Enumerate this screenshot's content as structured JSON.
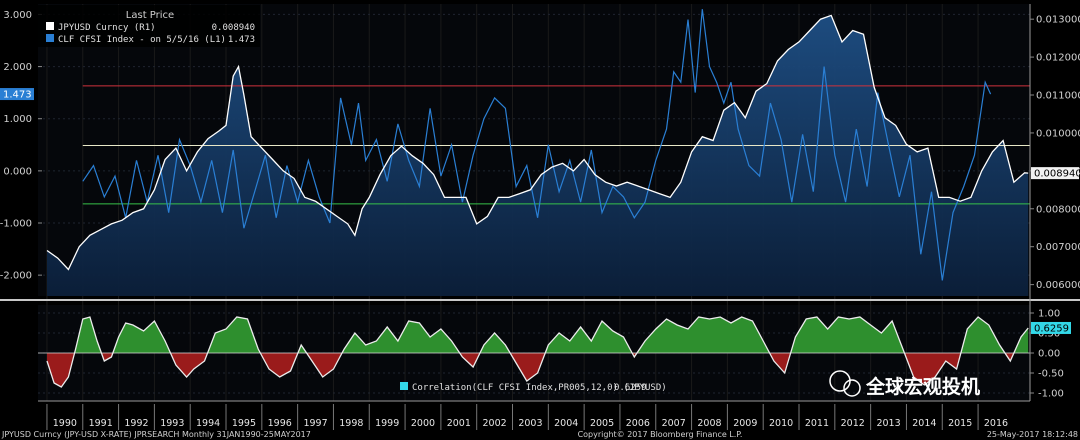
{
  "chart_data": [
    {
      "type": "area",
      "title": "Last Price",
      "legend": [
        {
          "name": "JPYUSD Curncy  (R1)",
          "value": "0.008940",
          "color": "#ffffff"
        },
        {
          "name": "CLF CFSI Index - on 5/5/16  (L1)",
          "value": "1.473",
          "color": "#2a7fd4"
        }
      ],
      "x_years": [
        "1990",
        "1991",
        "1992",
        "1993",
        "1994",
        "1995",
        "1996",
        "1997",
        "1998",
        "1999",
        "2000",
        "2001",
        "2002",
        "2003",
        "2004",
        "2005",
        "2006",
        "2007",
        "2008",
        "2009",
        "2010",
        "2011",
        "2012",
        "2013",
        "2014",
        "2015",
        "2016"
      ],
      "left_axis": {
        "ticks": [
          "3.000",
          "2.000",
          "1.000",
          "0.000",
          "-1.000",
          "-2.000"
        ],
        "ylim": [
          -2.4,
          3.2
        ],
        "last_label": "1.473"
      },
      "right_axis": {
        "ticks": [
          "0.013000",
          "0.012000",
          "0.011000",
          "0.010000",
          "0.009000",
          "0.008000",
          "0.007000",
          "0.006000"
        ],
        "ylim": [
          0.0057,
          0.0134
        ],
        "last_label": "0.008940"
      },
      "reference_lines": [
        {
          "value": 0.01124,
          "color": "#d0323c"
        },
        {
          "value": 0.00967,
          "color": "#e8e8c8"
        },
        {
          "value": 0.00813,
          "color": "#37c24a"
        }
      ],
      "series": [
        {
          "name": "JPYUSD Curncy",
          "axis": "right",
          "color": "#ffffff",
          "t": [
            1990.0,
            1990.3,
            1990.6,
            1990.9,
            1991.2,
            1991.5,
            1991.8,
            1992.1,
            1992.4,
            1992.7,
            1993.0,
            1993.3,
            1993.6,
            1993.9,
            1994.2,
            1994.5,
            1994.8,
            1995.0,
            1995.2,
            1995.35,
            1995.5,
            1995.7,
            1996.0,
            1996.3,
            1996.6,
            1996.9,
            1997.2,
            1997.5,
            1997.8,
            1998.1,
            1998.4,
            1998.6,
            1998.8,
            1999.0,
            1999.3,
            1999.6,
            1999.9,
            2000.2,
            2000.5,
            2000.8,
            2001.1,
            2001.4,
            2001.7,
            2002.0,
            2002.3,
            2002.6,
            2002.9,
            2003.2,
            2003.5,
            2003.8,
            2004.1,
            2004.4,
            2004.7,
            2005.0,
            2005.3,
            2005.6,
            2005.9,
            2006.2,
            2006.5,
            2006.8,
            2007.1,
            2007.4,
            2007.7,
            2008.0,
            2008.3,
            2008.6,
            2008.9,
            2009.2,
            2009.5,
            2009.8,
            2010.1,
            2010.4,
            2010.7,
            2011.0,
            2011.3,
            2011.6,
            2011.9,
            2012.2,
            2012.5,
            2012.8,
            2013.1,
            2013.4,
            2013.7,
            2014.0,
            2014.3,
            2014.6,
            2014.9,
            2015.2,
            2015.5,
            2015.8,
            2016.1,
            2016.4,
            2016.7,
            2017.0,
            2017.3,
            2017.4
          ],
          "values": [
            0.0069,
            0.0067,
            0.0064,
            0.007,
            0.0073,
            0.00745,
            0.0076,
            0.0077,
            0.0079,
            0.008,
            0.0085,
            0.0093,
            0.0096,
            0.009,
            0.0095,
            0.00985,
            0.01005,
            0.0102,
            0.0115,
            0.01175,
            0.011,
            0.0099,
            0.0096,
            0.0093,
            0.009,
            0.0088,
            0.0083,
            0.0082,
            0.008,
            0.0078,
            0.0076,
            0.0073,
            0.008,
            0.0083,
            0.0089,
            0.0094,
            0.00965,
            0.0094,
            0.0092,
            0.0089,
            0.0083,
            0.0083,
            0.0083,
            0.0076,
            0.0078,
            0.0083,
            0.0083,
            0.0084,
            0.0085,
            0.0089,
            0.0091,
            0.0092,
            0.009,
            0.0093,
            0.0089,
            0.0087,
            0.0086,
            0.0087,
            0.0086,
            0.0085,
            0.0084,
            0.0083,
            0.0087,
            0.0095,
            0.0099,
            0.0098,
            0.0106,
            0.0108,
            0.0104,
            0.0111,
            0.0113,
            0.0119,
            0.0122,
            0.0124,
            0.0127,
            0.013,
            0.0131,
            0.0124,
            0.0127,
            0.0126,
            0.0112,
            0.0104,
            0.0102,
            0.0097,
            0.0095,
            0.0096,
            0.0083,
            0.0083,
            0.0082,
            0.0083,
            0.009,
            0.0095,
            0.0098,
            0.0087,
            0.00895,
            0.00894
          ]
        },
        {
          "name": "CLF CFSI Index",
          "axis": "left",
          "color": "#2a7fd4",
          "t": [
            1991.0,
            1991.3,
            1991.6,
            1991.9,
            1992.2,
            1992.5,
            1992.8,
            1993.1,
            1993.4,
            1993.7,
            1994.0,
            1994.3,
            1994.6,
            1994.9,
            1995.2,
            1995.5,
            1995.8,
            1996.1,
            1996.4,
            1996.7,
            1997.0,
            1997.3,
            1997.6,
            1997.9,
            1998.2,
            1998.5,
            1998.7,
            1998.9,
            1999.2,
            1999.5,
            1999.8,
            2000.1,
            2000.4,
            2000.7,
            2001.0,
            2001.3,
            2001.6,
            2001.9,
            2002.2,
            2002.5,
            2002.8,
            2003.1,
            2003.4,
            2003.7,
            2004.0,
            2004.3,
            2004.6,
            2004.9,
            2005.2,
            2005.5,
            2005.8,
            2006.1,
            2006.4,
            2006.7,
            2007.0,
            2007.3,
            2007.5,
            2007.7,
            2007.9,
            2008.1,
            2008.3,
            2008.5,
            2008.7,
            2008.9,
            2009.1,
            2009.3,
            2009.6,
            2009.9,
            2010.2,
            2010.5,
            2010.8,
            2011.1,
            2011.4,
            2011.7,
            2012.0,
            2012.3,
            2012.6,
            2012.9,
            2013.2,
            2013.5,
            2013.8,
            2014.1,
            2014.4,
            2014.7,
            2015.0,
            2015.3,
            2015.6,
            2015.9,
            2016.2,
            2016.35
          ],
          "values": [
            -0.2,
            0.1,
            -0.5,
            -0.1,
            -0.9,
            0.2,
            -0.6,
            0.3,
            -0.8,
            0.6,
            0.1,
            -0.6,
            0.2,
            -0.8,
            0.4,
            -1.1,
            -0.4,
            0.3,
            -0.9,
            0.1,
            -0.6,
            0.2,
            -0.5,
            -1.0,
            1.4,
            0.5,
            1.3,
            0.2,
            0.6,
            -0.2,
            0.9,
            0.2,
            -0.3,
            1.2,
            -0.1,
            0.5,
            -0.6,
            0.3,
            1.0,
            1.4,
            1.2,
            -0.3,
            0.1,
            -0.9,
            0.5,
            -0.4,
            0.2,
            -0.6,
            0.4,
            -0.8,
            -0.3,
            -0.5,
            -0.9,
            -0.6,
            0.2,
            0.8,
            1.9,
            1.7,
            2.9,
            1.5,
            3.1,
            2.0,
            1.7,
            1.3,
            1.7,
            0.8,
            0.1,
            -0.1,
            1.3,
            0.6,
            -0.6,
            0.7,
            -0.4,
            2.0,
            0.3,
            -0.6,
            0.8,
            -0.3,
            1.5,
            0.5,
            -0.5,
            0.3,
            -1.6,
            -0.4,
            -2.1,
            -0.8,
            -0.3,
            0.3,
            1.7,
            1.473
          ]
        }
      ]
    },
    {
      "type": "area",
      "legend": [
        {
          "name": "Correlation(CLF CFSI Index,PR005,12,0)  (JPYUSD)",
          "value": "0.6259",
          "color": "#33d8e8"
        }
      ],
      "y_ticks": [
        "1.00",
        "0.50",
        "0.00",
        "-0.50",
        "-1.00"
      ],
      "ylim": [
        -1.2,
        1.2
      ],
      "last_label": "0.6259",
      "positive_color": "#2e8f2e",
      "negative_color": "#9a1b1b",
      "series": [
        {
          "name": "Correlation(CLF CFSI Index,PR005,12,0)",
          "t": [
            1990.0,
            1990.2,
            1990.4,
            1990.6,
            1990.8,
            1991.0,
            1991.2,
            1991.4,
            1991.6,
            1991.8,
            1992.0,
            1992.2,
            1992.4,
            1992.7,
            1993.0,
            1993.3,
            1993.6,
            1993.9,
            1994.1,
            1994.4,
            1994.7,
            1995.0,
            1995.3,
            1995.6,
            1995.9,
            1996.2,
            1996.5,
            1996.8,
            1997.1,
            1997.4,
            1997.7,
            1998.0,
            1998.3,
            1998.6,
            1998.9,
            1999.2,
            1999.5,
            1999.8,
            2000.1,
            2000.4,
            2000.7,
            2001.0,
            2001.3,
            2001.6,
            2001.9,
            2002.2,
            2002.5,
            2002.8,
            2003.1,
            2003.4,
            2003.7,
            2004.0,
            2004.3,
            2004.6,
            2004.9,
            2005.2,
            2005.5,
            2005.8,
            2006.1,
            2006.4,
            2006.7,
            2007.0,
            2007.3,
            2007.6,
            2007.9,
            2008.2,
            2008.5,
            2008.8,
            2009.1,
            2009.4,
            2009.7,
            2010.0,
            2010.3,
            2010.6,
            2010.9,
            2011.2,
            2011.5,
            2011.8,
            2012.1,
            2012.4,
            2012.7,
            2013.0,
            2013.3,
            2013.6,
            2013.9,
            2014.2,
            2014.5,
            2014.8,
            2015.1,
            2015.4,
            2015.7,
            2016.0,
            2016.3,
            2016.6,
            2016.9,
            2017.2,
            2017.4
          ],
          "values": [
            -0.2,
            -0.75,
            -0.85,
            -0.6,
            0.1,
            0.85,
            0.9,
            0.3,
            -0.2,
            -0.1,
            0.4,
            0.75,
            0.7,
            0.55,
            0.8,
            0.3,
            -0.3,
            -0.6,
            -0.4,
            -0.2,
            0.5,
            0.6,
            0.9,
            0.85,
            0.1,
            -0.4,
            -0.6,
            -0.45,
            0.2,
            -0.2,
            -0.6,
            -0.4,
            0.1,
            0.5,
            0.2,
            0.3,
            0.65,
            0.3,
            0.8,
            0.75,
            0.4,
            0.6,
            0.3,
            -0.1,
            -0.35,
            0.2,
            0.5,
            0.2,
            -0.25,
            -0.7,
            -0.5,
            0.2,
            0.5,
            0.3,
            0.65,
            0.3,
            0.8,
            0.55,
            0.4,
            -0.1,
            0.3,
            0.6,
            0.85,
            0.7,
            0.6,
            0.9,
            0.85,
            0.9,
            0.75,
            0.9,
            0.8,
            0.3,
            -0.2,
            -0.5,
            0.4,
            0.85,
            0.9,
            0.6,
            0.9,
            0.85,
            0.9,
            0.7,
            0.5,
            0.8,
            0.1,
            -0.6,
            -0.8,
            -0.6,
            -0.2,
            -0.4,
            0.6,
            0.9,
            0.7,
            0.2,
            -0.2,
            0.4,
            0.6259
          ]
        }
      ]
    }
  ],
  "footer": {
    "left": "JPYUSD Curncy (JPY-USD X-RATE) JPRSEARCH  Monthly 31JAN1990-25MAY2017",
    "center": "Copyright© 2017 Bloomberg Finance L.P.",
    "right": "25-May-2017 18:12:48"
  },
  "watermark": "全球宏观投机"
}
